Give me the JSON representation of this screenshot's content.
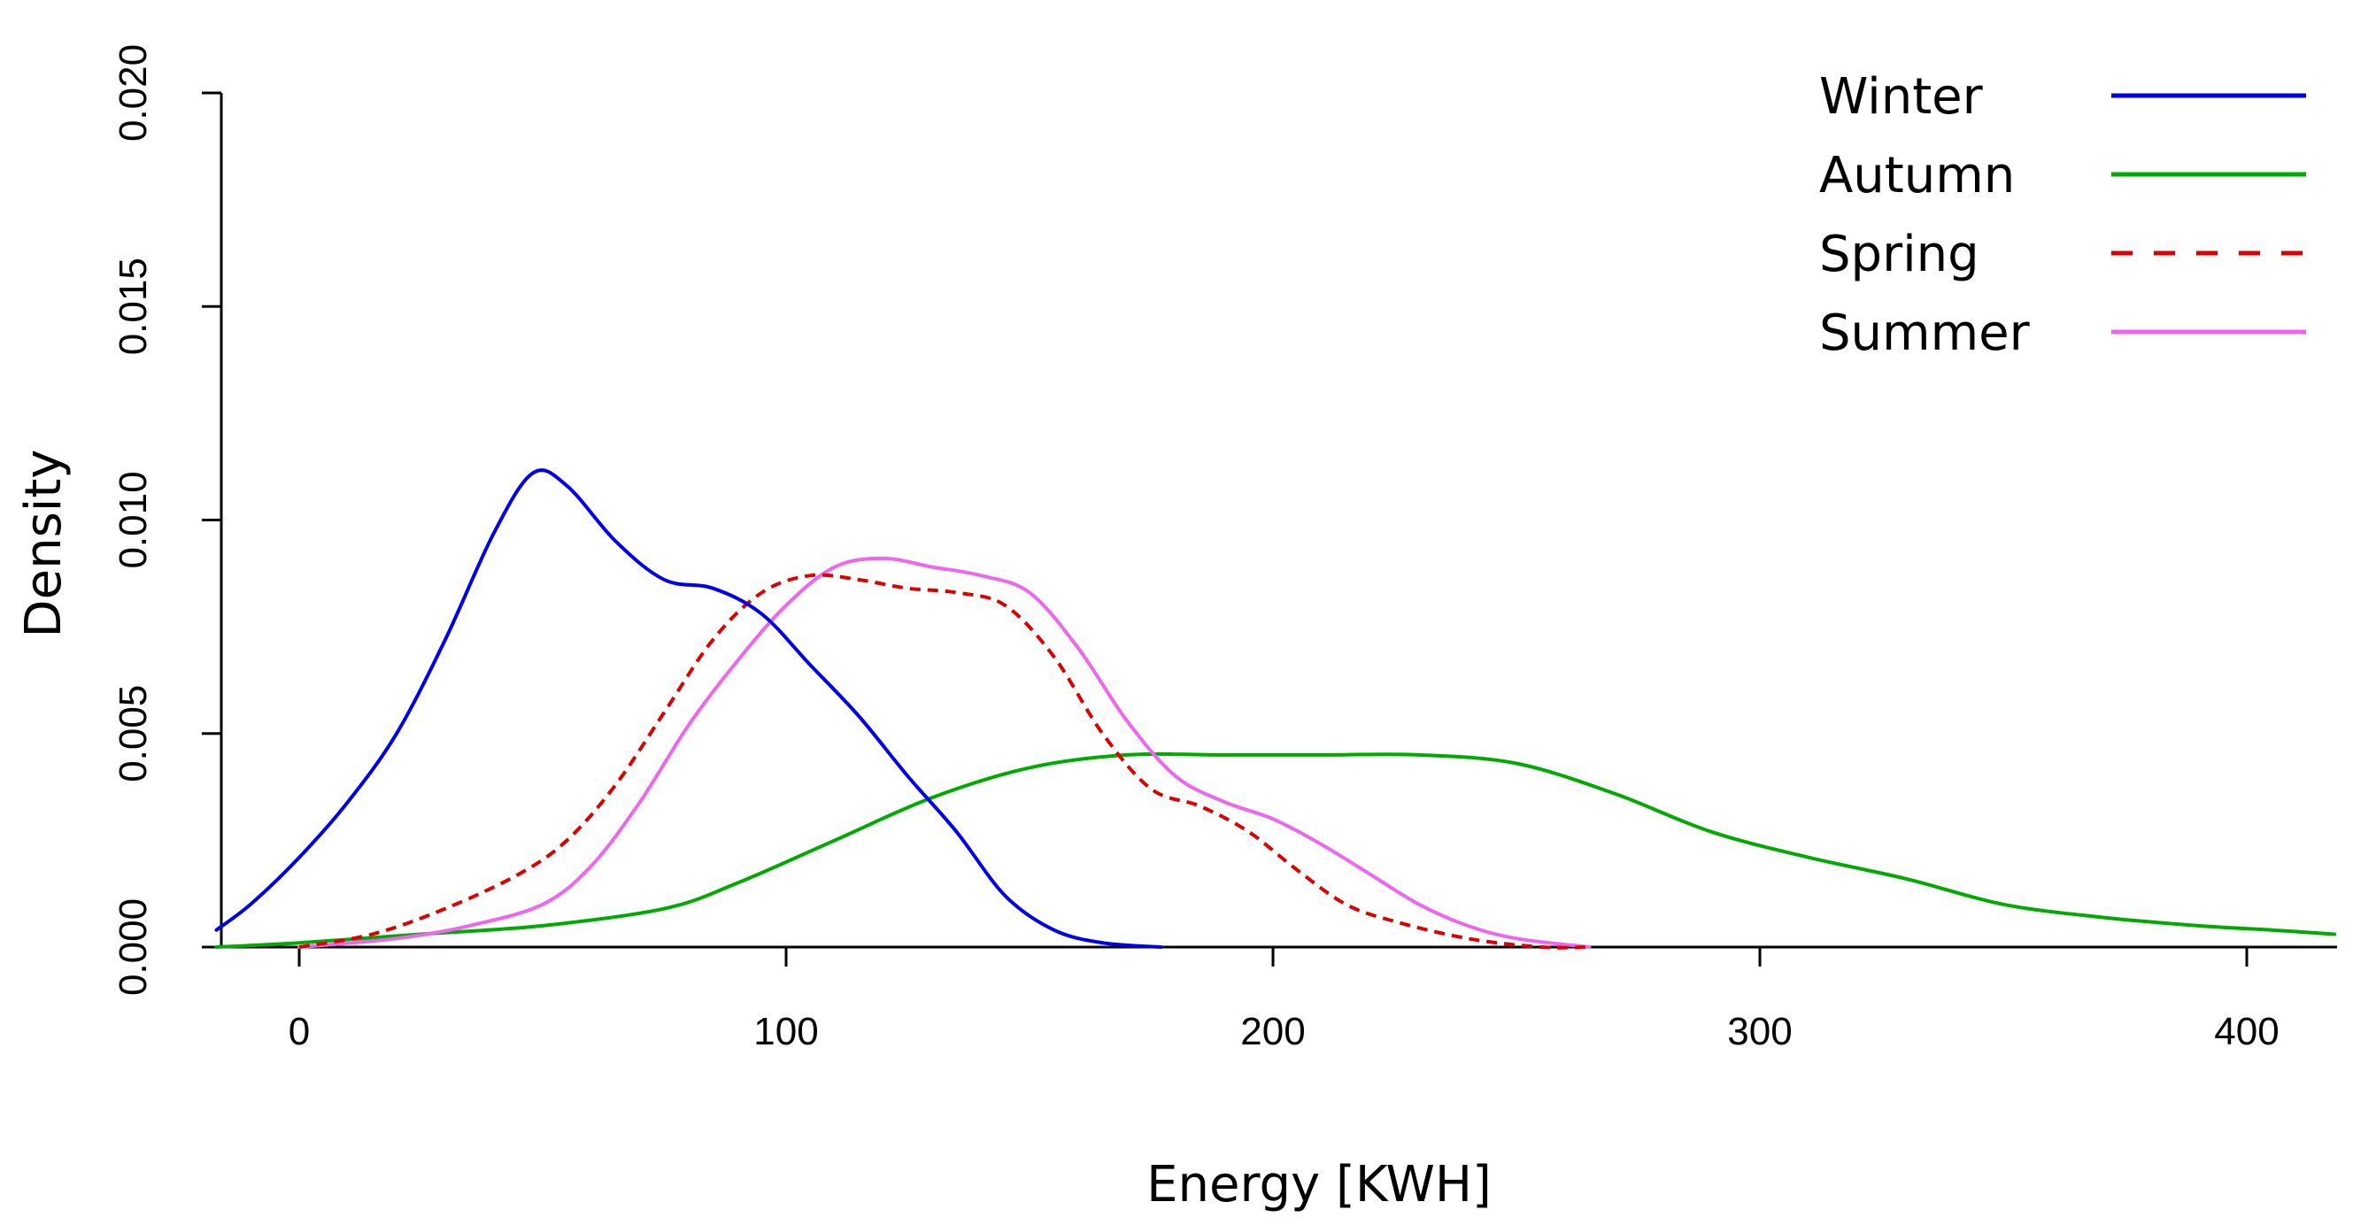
{
  "chart_data": {
    "type": "line",
    "title": "",
    "xlabel": "Energy [KWH]",
    "ylabel": "Density",
    "xlim": [
      -17,
      418
    ],
    "ylim": [
      0,
      0.02
    ],
    "x_ticks": [
      "0",
      "100",
      "200",
      "300",
      "400"
    ],
    "y_ticks": [
      "0.000",
      "0.005",
      "0.010",
      "0.015",
      "0.020"
    ],
    "legend_position": "top-right",
    "series": [
      {
        "name": "Winter",
        "color": "#0000ee",
        "dash": "solid",
        "points": [
          [
            -17,
            0.0004
          ],
          [
            -10,
            0.001
          ],
          [
            0,
            0.0021
          ],
          [
            10,
            0.0034
          ],
          [
            20,
            0.005
          ],
          [
            30,
            0.0072
          ],
          [
            40,
            0.0097
          ],
          [
            48,
            0.0111
          ],
          [
            55,
            0.0108
          ],
          [
            65,
            0.0095
          ],
          [
            75,
            0.0086
          ],
          [
            85,
            0.0084
          ],
          [
            95,
            0.0078
          ],
          [
            105,
            0.0066
          ],
          [
            115,
            0.0054
          ],
          [
            125,
            0.004
          ],
          [
            135,
            0.0027
          ],
          [
            145,
            0.0012
          ],
          [
            155,
            0.0004
          ],
          [
            165,
            0.0001
          ],
          [
            177,
            0.0
          ]
        ]
      },
      {
        "name": "Autumn",
        "color": "#00aa00",
        "dash": "solid",
        "points": [
          [
            -17,
            0.0
          ],
          [
            0,
            0.0001
          ],
          [
            25,
            0.0003
          ],
          [
            50,
            0.0005
          ],
          [
            75,
            0.0009
          ],
          [
            90,
            0.0015
          ],
          [
            110,
            0.0025
          ],
          [
            130,
            0.0035
          ],
          [
            150,
            0.0042
          ],
          [
            170,
            0.0045
          ],
          [
            190,
            0.0045
          ],
          [
            210,
            0.0045
          ],
          [
            230,
            0.0045
          ],
          [
            250,
            0.0043
          ],
          [
            270,
            0.0036
          ],
          [
            290,
            0.0027
          ],
          [
            310,
            0.0021
          ],
          [
            330,
            0.0016
          ],
          [
            350,
            0.001
          ],
          [
            370,
            0.0007
          ],
          [
            390,
            0.0005
          ],
          [
            405,
            0.0004
          ],
          [
            418,
            0.0003
          ]
        ]
      },
      {
        "name": "Spring",
        "color": "#dd0000",
        "dash": "dashed",
        "points": [
          [
            0,
            0.0
          ],
          [
            15,
            0.0003
          ],
          [
            30,
            0.0009
          ],
          [
            45,
            0.0017
          ],
          [
            55,
            0.0025
          ],
          [
            65,
            0.0038
          ],
          [
            75,
            0.0055
          ],
          [
            85,
            0.0072
          ],
          [
            95,
            0.0083
          ],
          [
            105,
            0.0087
          ],
          [
            115,
            0.0086
          ],
          [
            125,
            0.0084
          ],
          [
            135,
            0.0083
          ],
          [
            145,
            0.008
          ],
          [
            155,
            0.0068
          ],
          [
            165,
            0.005
          ],
          [
            175,
            0.0037
          ],
          [
            185,
            0.0033
          ],
          [
            195,
            0.0027
          ],
          [
            205,
            0.0018
          ],
          [
            215,
            0.001
          ],
          [
            225,
            0.0006
          ],
          [
            240,
            0.0002
          ],
          [
            255,
            0.0
          ],
          [
            265,
            0.0
          ]
        ]
      },
      {
        "name": "Summer",
        "color": "#ee66ee",
        "dash": "solid",
        "points": [
          [
            0,
            0.0
          ],
          [
            20,
            0.0002
          ],
          [
            35,
            0.0005
          ],
          [
            50,
            0.001
          ],
          [
            60,
            0.0019
          ],
          [
            70,
            0.0034
          ],
          [
            80,
            0.0052
          ],
          [
            90,
            0.0067
          ],
          [
            100,
            0.008
          ],
          [
            110,
            0.0089
          ],
          [
            120,
            0.0091
          ],
          [
            130,
            0.0089
          ],
          [
            140,
            0.0087
          ],
          [
            150,
            0.0083
          ],
          [
            160,
            0.007
          ],
          [
            170,
            0.0053
          ],
          [
            180,
            0.004
          ],
          [
            190,
            0.0034
          ],
          [
            200,
            0.003
          ],
          [
            210,
            0.0024
          ],
          [
            220,
            0.0017
          ],
          [
            230,
            0.001
          ],
          [
            240,
            0.0005
          ],
          [
            250,
            0.0002
          ],
          [
            265,
            0.0
          ]
        ]
      }
    ]
  }
}
